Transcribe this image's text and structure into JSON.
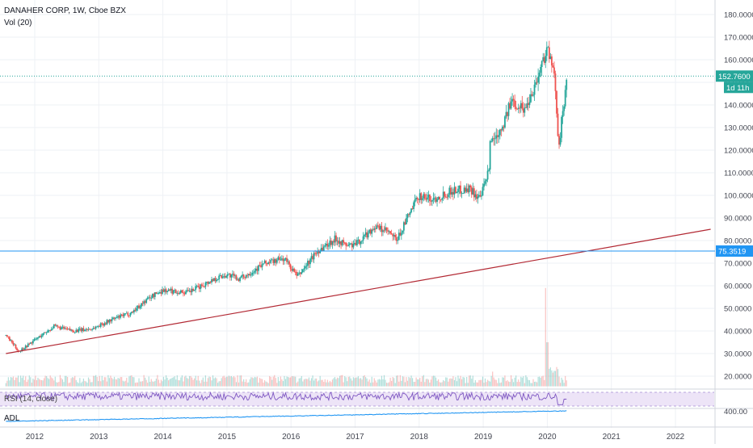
{
  "header": {
    "symbol_line": "DANAHER CORP, 1W, Cboe BZX",
    "volume_label": "Vol (20)"
  },
  "indicators": {
    "rsi_label": "RSI (14, close)",
    "adl_label": "ADL",
    "adl_axis_value": "400.00"
  },
  "price_tags": {
    "last_price": "152.7600",
    "countdown": "1d 11h",
    "horizontal_level": "75.3519"
  },
  "colors": {
    "up": "#26a69a",
    "down": "#ef5350",
    "trendline": "#b22833",
    "horizontal_line": "#2196f3",
    "last_price_line": "#26a69a",
    "rsi_line": "#7e57c2",
    "rsi_band": "#ede4f7",
    "adl_line": "#2196f3"
  },
  "chart_data": {
    "type": "candlestick",
    "title": "DANAHER CORP, 1W, Cboe BZX",
    "x_ticks": [
      "2012",
      "2013",
      "2014",
      "2015",
      "2016",
      "2017",
      "2018",
      "2019",
      "2020",
      "2021",
      "2022"
    ],
    "y_ticks": [
      "20.0000",
      "30.0000",
      "40.0000",
      "50.0000",
      "60.0000",
      "70.0000",
      "80.0000",
      "90.0000",
      "100.0000",
      "110.0000",
      "120.0000",
      "130.0000",
      "140.0000",
      "150.0000",
      "160.0000",
      "170.0000",
      "180.0000"
    ],
    "y_range": [
      15,
      183
    ],
    "x_range": [
      2011.55,
      2022.55
    ],
    "price_path": [
      [
        2011.55,
        38
      ],
      [
        2011.75,
        31
      ],
      [
        2012.0,
        36
      ],
      [
        2012.3,
        42
      ],
      [
        2012.6,
        40
      ],
      [
        2012.9,
        41
      ],
      [
        2013.2,
        45
      ],
      [
        2013.5,
        48
      ],
      [
        2013.8,
        55
      ],
      [
        2014.0,
        58
      ],
      [
        2014.4,
        57
      ],
      [
        2014.8,
        63
      ],
      [
        2015.0,
        65
      ],
      [
        2015.2,
        63
      ],
      [
        2015.6,
        70
      ],
      [
        2015.9,
        72
      ],
      [
        2016.1,
        64
      ],
      [
        2016.4,
        75
      ],
      [
        2016.7,
        81
      ],
      [
        2016.85,
        78
      ],
      [
        2017.0,
        78
      ],
      [
        2017.3,
        86
      ],
      [
        2017.5,
        84
      ],
      [
        2017.65,
        80
      ],
      [
        2017.85,
        92
      ],
      [
        2018.0,
        100
      ],
      [
        2018.2,
        98
      ],
      [
        2018.5,
        102
      ],
      [
        2018.8,
        103
      ],
      [
        2018.95,
        98
      ],
      [
        2019.1,
        112
      ],
      [
        2019.12,
        123
      ],
      [
        2019.3,
        131
      ],
      [
        2019.45,
        142
      ],
      [
        2019.65,
        138
      ],
      [
        2019.85,
        152
      ],
      [
        2020.0,
        166
      ],
      [
        2020.12,
        150
      ],
      [
        2020.18,
        122
      ],
      [
        2020.27,
        143
      ],
      [
        2020.3,
        152.76
      ]
    ],
    "volume_spikes": [
      [
        2019.97,
        59
      ],
      [
        2020.0,
        35
      ],
      [
        2019.15,
        22
      ]
    ],
    "trendline": {
      "from": [
        2011.55,
        30
      ],
      "to": [
        2022.55,
        85
      ]
    },
    "horizontal_level": 75.3519,
    "last_price": 152.76,
    "rsi": {
      "label": "RSI (14, close)",
      "band": [
        30,
        70
      ],
      "last": 44
    },
    "adl": {
      "label": "ADL",
      "axis_value": "400.00"
    }
  }
}
